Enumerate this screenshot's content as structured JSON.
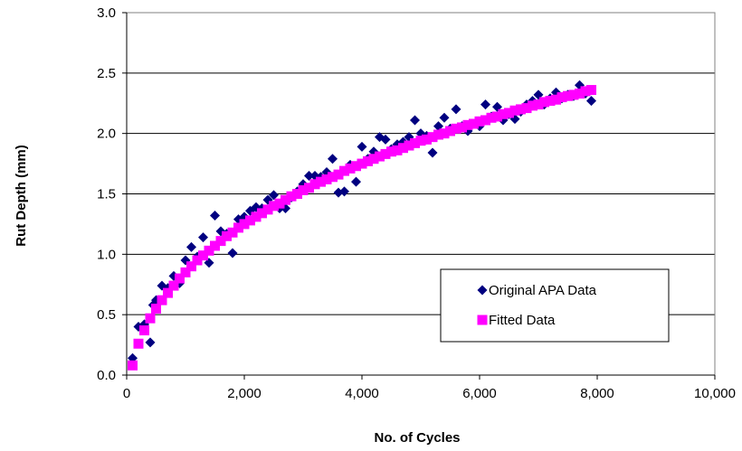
{
  "chart_data": {
    "type": "scatter",
    "title": "",
    "xlabel": "No. of Cycles",
    "ylabel": "Rut Depth (mm)",
    "xlim": [
      0,
      10000
    ],
    "ylim": [
      0,
      3.0
    ],
    "x_ticks": [
      0,
      2000,
      4000,
      6000,
      8000,
      10000
    ],
    "x_tick_labels": [
      "0",
      "2,000",
      "4,000",
      "6,000",
      "8,000",
      "10,000"
    ],
    "y_ticks": [
      0,
      0.5,
      1.0,
      1.5,
      2.0,
      2.5,
      3.0
    ],
    "y_tick_labels": [
      "0.0",
      "0.5",
      "1.0",
      "1.5",
      "2.0",
      "2.5",
      "3.0"
    ],
    "grid": "horizontal",
    "legend_position": "lower-right inside plot",
    "series": [
      {
        "name": "Original APA Data",
        "marker": "diamond",
        "color": "#000080",
        "points": [
          [
            100,
            0.14
          ],
          [
            200,
            0.4
          ],
          [
            300,
            0.42
          ],
          [
            400,
            0.27
          ],
          [
            450,
            0.58
          ],
          [
            500,
            0.62
          ],
          [
            600,
            0.74
          ],
          [
            700,
            0.72
          ],
          [
            800,
            0.82
          ],
          [
            900,
            0.76
          ],
          [
            1000,
            0.95
          ],
          [
            1100,
            1.06
          ],
          [
            1200,
            0.98
          ],
          [
            1300,
            1.14
          ],
          [
            1400,
            0.93
          ],
          [
            1500,
            1.32
          ],
          [
            1600,
            1.19
          ],
          [
            1700,
            1.17
          ],
          [
            1800,
            1.01
          ],
          [
            1900,
            1.29
          ],
          [
            2000,
            1.31
          ],
          [
            2100,
            1.36
          ],
          [
            2200,
            1.39
          ],
          [
            2300,
            1.38
          ],
          [
            2400,
            1.45
          ],
          [
            2500,
            1.49
          ],
          [
            2600,
            1.38
          ],
          [
            2700,
            1.38
          ],
          [
            2800,
            1.47
          ],
          [
            2900,
            1.52
          ],
          [
            3000,
            1.58
          ],
          [
            3100,
            1.65
          ],
          [
            3200,
            1.65
          ],
          [
            3300,
            1.64
          ],
          [
            3400,
            1.68
          ],
          [
            3500,
            1.79
          ],
          [
            3600,
            1.51
          ],
          [
            3700,
            1.52
          ],
          [
            3800,
            1.74
          ],
          [
            3900,
            1.6
          ],
          [
            4000,
            1.89
          ],
          [
            4100,
            1.79
          ],
          [
            4200,
            1.85
          ],
          [
            4300,
            1.97
          ],
          [
            4400,
            1.95
          ],
          [
            4500,
            1.87
          ],
          [
            4600,
            1.91
          ],
          [
            4700,
            1.93
          ],
          [
            4800,
            1.97
          ],
          [
            4900,
            2.11
          ],
          [
            5000,
            2.0
          ],
          [
            5100,
            1.98
          ],
          [
            5200,
            1.84
          ],
          [
            5300,
            2.06
          ],
          [
            5400,
            2.13
          ],
          [
            5500,
            2.04
          ],
          [
            5600,
            2.2
          ],
          [
            5700,
            2.06
          ],
          [
            5800,
            2.02
          ],
          [
            5900,
            2.08
          ],
          [
            6000,
            2.06
          ],
          [
            6100,
            2.24
          ],
          [
            6200,
            2.14
          ],
          [
            6300,
            2.22
          ],
          [
            6400,
            2.11
          ],
          [
            6500,
            2.16
          ],
          [
            6600,
            2.12
          ],
          [
            6700,
            2.18
          ],
          [
            6800,
            2.24
          ],
          [
            6900,
            2.27
          ],
          [
            7000,
            2.32
          ],
          [
            7100,
            2.24
          ],
          [
            7200,
            2.29
          ],
          [
            7300,
            2.34
          ],
          [
            7400,
            2.29
          ],
          [
            7500,
            2.32
          ],
          [
            7600,
            2.31
          ],
          [
            7700,
            2.4
          ],
          [
            7800,
            2.33
          ],
          [
            7900,
            2.27
          ]
        ]
      },
      {
        "name": "Fitted Data",
        "marker": "square",
        "color": "#FF00FF",
        "points": [
          [
            100,
            0.08
          ],
          [
            200,
            0.26
          ],
          [
            300,
            0.37
          ],
          [
            400,
            0.47
          ],
          [
            500,
            0.55
          ],
          [
            600,
            0.62
          ],
          [
            700,
            0.68
          ],
          [
            800,
            0.74
          ],
          [
            900,
            0.8
          ],
          [
            1000,
            0.85
          ],
          [
            1100,
            0.9
          ],
          [
            1200,
            0.95
          ],
          [
            1300,
            0.99
          ],
          [
            1400,
            1.03
          ],
          [
            1500,
            1.07
          ],
          [
            1600,
            1.11
          ],
          [
            1700,
            1.15
          ],
          [
            1800,
            1.18
          ],
          [
            1900,
            1.22
          ],
          [
            2000,
            1.25
          ],
          [
            2100,
            1.28
          ],
          [
            2200,
            1.31
          ],
          [
            2300,
            1.34
          ],
          [
            2400,
            1.37
          ],
          [
            2500,
            1.4
          ],
          [
            2600,
            1.42
          ],
          [
            2700,
            1.45
          ],
          [
            2800,
            1.48
          ],
          [
            2900,
            1.5
          ],
          [
            3000,
            1.53
          ],
          [
            3100,
            1.55
          ],
          [
            3200,
            1.58
          ],
          [
            3300,
            1.6
          ],
          [
            3400,
            1.62
          ],
          [
            3500,
            1.64
          ],
          [
            3600,
            1.66
          ],
          [
            3700,
            1.69
          ],
          [
            3800,
            1.71
          ],
          [
            3900,
            1.73
          ],
          [
            4000,
            1.75
          ],
          [
            4100,
            1.77
          ],
          [
            4200,
            1.79
          ],
          [
            4300,
            1.81
          ],
          [
            4400,
            1.83
          ],
          [
            4500,
            1.85
          ],
          [
            4600,
            1.86
          ],
          [
            4700,
            1.88
          ],
          [
            4800,
            1.9
          ],
          [
            4900,
            1.92
          ],
          [
            5000,
            1.94
          ],
          [
            5100,
            1.95
          ],
          [
            5200,
            1.97
          ],
          [
            5300,
            1.99
          ],
          [
            5400,
            2.0
          ],
          [
            5500,
            2.02
          ],
          [
            5600,
            2.04
          ],
          [
            5700,
            2.05
          ],
          [
            5800,
            2.07
          ],
          [
            5900,
            2.08
          ],
          [
            6000,
            2.1
          ],
          [
            6100,
            2.11
          ],
          [
            6200,
            2.13
          ],
          [
            6300,
            2.14
          ],
          [
            6400,
            2.16
          ],
          [
            6500,
            2.17
          ],
          [
            6600,
            2.19
          ],
          [
            6700,
            2.2
          ],
          [
            6800,
            2.21
          ],
          [
            6900,
            2.23
          ],
          [
            7000,
            2.24
          ],
          [
            7100,
            2.26
          ],
          [
            7200,
            2.27
          ],
          [
            7300,
            2.28
          ],
          [
            7400,
            2.3
          ],
          [
            7500,
            2.31
          ],
          [
            7600,
            2.32
          ],
          [
            7700,
            2.33
          ],
          [
            7800,
            2.35
          ],
          [
            7900,
            2.36
          ]
        ]
      }
    ]
  }
}
